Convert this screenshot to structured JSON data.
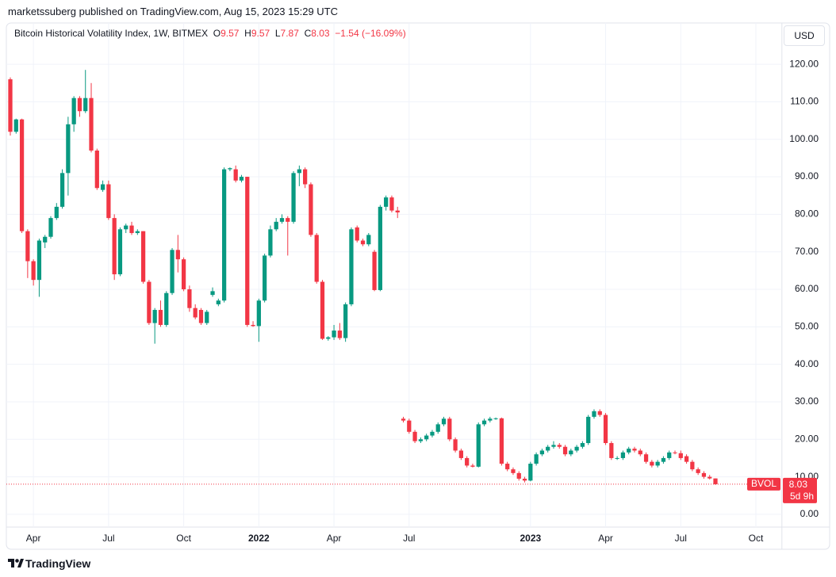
{
  "header": {
    "published": "marketssuberg published on TradingView.com, Aug 15, 2023 15:29 UTC"
  },
  "chart_data": {
    "type": "candlestick",
    "title": "Bitcoin Historical Volatility Index, 1W, BITMEX",
    "legend": {
      "o_label": "O",
      "h_label": "H",
      "l_label": "L",
      "c_label": "C",
      "change": "−1.54",
      "change_pct": "(−16.09%)"
    },
    "currency": "USD",
    "symbol": "BVOL",
    "countdown": "5d 9h",
    "up_color": "#089981",
    "down_color": "#f23645",
    "categories": [
      null,
      null,
      null,
      null,
      "Apr",
      null,
      null,
      null,
      null,
      null,
      null,
      null,
      null,
      null,
      null,
      null,
      null,
      "Jul",
      null,
      null,
      null,
      null,
      null,
      null,
      null,
      null,
      null,
      null,
      null,
      null,
      "Oct",
      null,
      null,
      null,
      null,
      null,
      null,
      null,
      null,
      null,
      null,
      null,
      null,
      "2022",
      null,
      null,
      null,
      null,
      null,
      null,
      null,
      null,
      null,
      null,
      null,
      null,
      "Apr",
      null,
      null,
      null,
      null,
      null,
      null,
      null,
      null,
      null,
      null,
      null,
      null,
      "Jul",
      null,
      null,
      null,
      null,
      null,
      null,
      null,
      null,
      null,
      null,
      null,
      null,
      null,
      null,
      null,
      null,
      null,
      null,
      null,
      null,
      "2023",
      null,
      null,
      null,
      null,
      null,
      null,
      null,
      null,
      null,
      null,
      null,
      null,
      "Apr",
      null,
      null,
      null,
      null,
      null,
      null,
      null,
      null,
      null,
      null,
      null,
      null,
      "Jul",
      null,
      null,
      null,
      null,
      null,
      null,
      null,
      null,
      null,
      null,
      null,
      null,
      "Oct",
      null,
      null,
      null,
      null
    ],
    "open": [
      116,
      102,
      105.3,
      75.5,
      67.5,
      62.5,
      72.5,
      74,
      79,
      82,
      91,
      104,
      111,
      107.5,
      111,
      97,
      86.5,
      88,
      79,
      64,
      76,
      77,
      75,
      75.5,
      62,
      51,
      54.5,
      50.5,
      59,
      70.5,
      68,
      60,
      55,
      54.5,
      51,
      58.5,
      56,
      57,
      92,
      92,
      89,
      90,
      50.5,
      50.2,
      57,
      69,
      76,
      78,
      79,
      78,
      91,
      92,
      88,
      74.5,
      62,
      46.8,
      47.2,
      49,
      47,
      56,
      76.5,
      73,
      72,
      70,
      59.8,
      82,
      84.5,
      81,
      25.5,
      25,
      22,
      19.5,
      20,
      21,
      22,
      24,
      25.5,
      20,
      17,
      15,
      13,
      12.7,
      24,
      25,
      25.5,
      25.6,
      13.5,
      12,
      11,
      9.5,
      9,
      13.5,
      16,
      17,
      18,
      18.5,
      18,
      16,
      17,
      18,
      19,
      26,
      27.5,
      26.5,
      19,
      15,
      15,
      16.5,
      17.5,
      17,
      16,
      14,
      13,
      14,
      15,
      16.5,
      16.3,
      15.5,
      14,
      12,
      11,
      10,
      9.57,
      null,
      null,
      null,
      null,
      null,
      null,
      null,
      null,
      null,
      null,
      null
    ],
    "high": [
      116.5,
      105.5,
      105.5,
      76,
      68,
      73.5,
      74.5,
      79.5,
      83,
      92,
      106,
      111.5,
      111.5,
      118.5,
      115,
      97.5,
      89,
      89,
      80,
      76.5,
      77.5,
      78,
      76,
      75.5,
      62.5,
      55,
      57,
      59.5,
      71,
      74.5,
      68.5,
      61,
      56,
      55,
      54.5,
      60.5,
      57.5,
      92.5,
      92.5,
      93,
      90.5,
      90,
      51.5,
      57.5,
      69.5,
      77,
      79,
      80,
      79.5,
      91.5,
      93,
      92.5,
      88.5,
      75,
      62.5,
      47.5,
      50.5,
      51,
      56.5,
      76.5,
      77,
      73.5,
      75,
      70.5,
      82.5,
      85,
      85,
      82,
      26,
      25.5,
      22.5,
      20.5,
      21.5,
      22.5,
      24.5,
      26,
      26,
      20.5,
      17.5,
      15.5,
      13.5,
      24.5,
      25.5,
      26,
      25.8,
      25.8,
      14,
      12.5,
      11.5,
      10,
      14,
      16.5,
      17.5,
      18.5,
      19.5,
      19,
      18.5,
      17.5,
      18.5,
      19.5,
      26.5,
      28,
      28,
      27,
      19.5,
      15.5,
      17,
      18,
      18,
      17.5,
      16.5,
      14.5,
      14.5,
      15.5,
      17,
      17,
      17,
      16,
      14.5,
      12.5,
      11.5,
      10.5,
      9.57,
      null,
      null,
      null,
      null,
      null,
      null,
      null,
      null,
      null,
      null,
      null
    ],
    "low": [
      101,
      101.5,
      75,
      63,
      61,
      58,
      71,
      73.5,
      78.5,
      81.5,
      85,
      102,
      106,
      107,
      96.5,
      86.5,
      86,
      78.5,
      62.5,
      63.5,
      75,
      74.5,
      74.5,
      61.5,
      50.5,
      45.5,
      50,
      50,
      58.5,
      64.5,
      59.5,
      54,
      52,
      50.5,
      50.5,
      58,
      55.5,
      56.5,
      91.5,
      88.5,
      88.5,
      50,
      50,
      46,
      56.5,
      68.5,
      75.5,
      77.5,
      69,
      77.5,
      87.5,
      87,
      74,
      61.5,
      46.5,
      46.3,
      46.5,
      46.5,
      46,
      55.5,
      72.5,
      71.5,
      71.5,
      59.5,
      59.5,
      81,
      80.5,
      79,
      24.5,
      21.5,
      19,
      19,
      19.5,
      20.5,
      21.5,
      23.5,
      19.5,
      16.5,
      14.5,
      12.5,
      12.5,
      12.5,
      23.5,
      24.5,
      25.2,
      13,
      11.5,
      10.5,
      9,
      8.5,
      8.8,
      13,
      15.5,
      16.5,
      17.5,
      17.5,
      15.5,
      15.5,
      16.5,
      17.5,
      18.5,
      25.5,
      26,
      18.5,
      14.5,
      14.5,
      14.5,
      16,
      16.5,
      15.5,
      13.5,
      12.5,
      12.5,
      13.5,
      14.5,
      16,
      14.5,
      13.5,
      11.5,
      10.5,
      9.5,
      9.3,
      7.87,
      null,
      null,
      null,
      null,
      null,
      null,
      null,
      null,
      null,
      null,
      null
    ],
    "close": [
      102,
      105.3,
      75.5,
      67.5,
      62.5,
      73,
      74,
      79,
      82,
      91,
      104,
      111,
      107.5,
      111,
      97,
      87,
      88,
      79,
      64,
      76,
      77,
      75,
      75.5,
      62,
      51,
      54.5,
      50.5,
      59,
      70.5,
      68,
      60,
      55,
      52.5,
      51,
      54,
      59.5,
      57,
      92,
      92.3,
      89,
      90,
      50.5,
      50.2,
      57,
      69,
      76,
      78,
      79,
      78,
      91,
      92,
      88,
      74.5,
      62,
      46.8,
      47.2,
      49,
      47,
      56,
      76,
      73,
      72,
      74.5,
      59.8,
      82,
      84.5,
      81,
      80.5,
      25,
      22,
      19.5,
      20,
      21,
      22,
      24,
      25.5,
      20,
      17,
      15,
      13,
      12.7,
      24,
      25,
      25.5,
      25.6,
      13.5,
      12,
      11,
      9.5,
      9,
      13.5,
      16,
      17,
      18,
      18.5,
      18,
      16,
      17,
      18,
      19,
      26,
      27.5,
      26.5,
      19,
      15,
      15,
      16.5,
      17.5,
      17,
      16,
      14,
      13,
      14,
      15,
      16.5,
      16.3,
      15,
      14,
      12,
      11,
      10,
      9.57,
      8.03,
      null,
      null,
      null,
      null,
      null,
      null,
      null,
      null,
      null,
      null,
      null
    ],
    "ylim": [
      -3.4,
      130.8
    ],
    "yticks": [
      {
        "value": 0,
        "label": "0.00"
      },
      {
        "value": 10,
        "label": "10.00"
      },
      {
        "value": 20,
        "label": "20.00"
      },
      {
        "value": 30,
        "label": "30.00"
      },
      {
        "value": 40,
        "label": "40.00"
      },
      {
        "value": 50,
        "label": "50.00"
      },
      {
        "value": 60,
        "label": "60.00"
      },
      {
        "value": 70,
        "label": "70.00"
      },
      {
        "value": 80,
        "label": "80.00"
      },
      {
        "value": 90,
        "label": "90.00"
      },
      {
        "value": 100,
        "label": "100.00"
      },
      {
        "value": 110,
        "label": "110.00"
      },
      {
        "value": 120,
        "label": "120.00"
      }
    ],
    "grid": true
  },
  "footer": {
    "brand": "TradingView"
  }
}
